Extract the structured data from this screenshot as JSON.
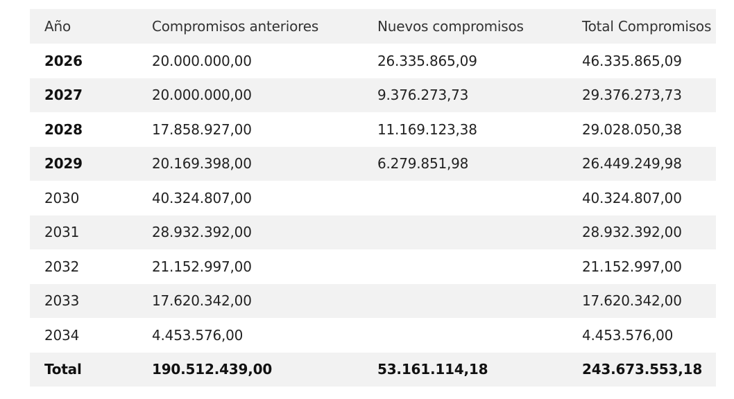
{
  "table": {
    "headers": [
      "Año",
      "Compromisos anteriores",
      "Nuevos compromisos",
      "Total Compromisos"
    ],
    "rows": [
      {
        "year": "2026",
        "anteriores": "20.000.000,00",
        "nuevos": "26.335.865,09",
        "total": "46.335.865,09",
        "bold_year": true
      },
      {
        "year": "2027",
        "anteriores": "20.000.000,00",
        "nuevos": "9.376.273,73",
        "total": "29.376.273,73",
        "bold_year": true
      },
      {
        "year": "2028",
        "anteriores": "17.858.927,00",
        "nuevos": "11.169.123,38",
        "total": "29.028.050,38",
        "bold_year": true
      },
      {
        "year": "2029",
        "anteriores": "20.169.398,00",
        "nuevos": "6.279.851,98",
        "total": "26.449.249,98",
        "bold_year": true
      },
      {
        "year": "2030",
        "anteriores": "40.324.807,00",
        "nuevos": "",
        "total": "40.324.807,00",
        "bold_year": false
      },
      {
        "year": "2031",
        "anteriores": "28.932.392,00",
        "nuevos": "",
        "total": "28.932.392,00",
        "bold_year": false
      },
      {
        "year": "2032",
        "anteriores": "21.152.997,00",
        "nuevos": "",
        "total": "21.152.997,00",
        "bold_year": false
      },
      {
        "year": "2033",
        "anteriores": "17.620.342,00",
        "nuevos": "",
        "total": "17.620.342,00",
        "bold_year": false
      },
      {
        "year": "2034",
        "anteriores": "4.453.576,00",
        "nuevos": "",
        "total": "4.453.576,00",
        "bold_year": false
      }
    ],
    "total_row": {
      "label": "Total",
      "anteriores": "190.512.439,00",
      "nuevos": "53.161.114,18",
      "total": "243.673.553,18"
    }
  },
  "colors": {
    "stripe": "#f2f2f2",
    "text": "#222222"
  }
}
